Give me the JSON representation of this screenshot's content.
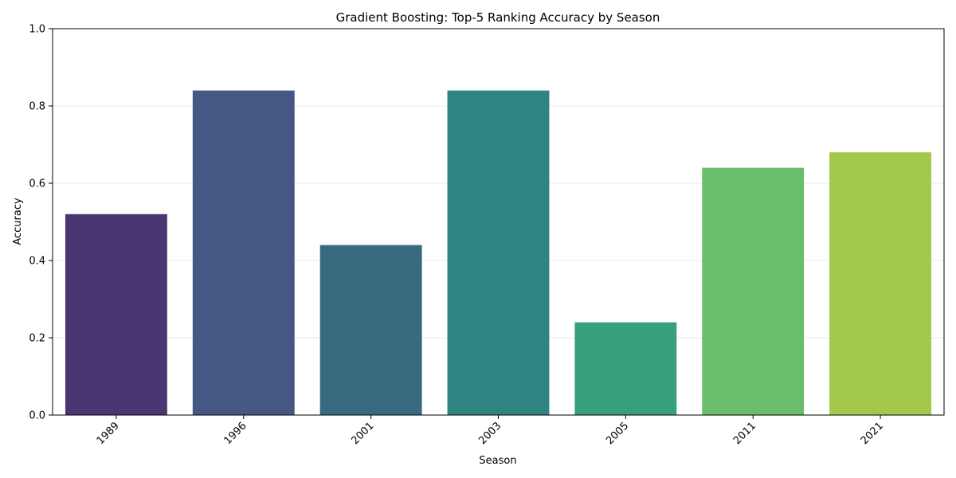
{
  "chart_data": {
    "type": "bar",
    "title": "Gradient Boosting: Top-5 Ranking Accuracy by Season",
    "xlabel": "Season",
    "ylabel": "Accuracy",
    "categories": [
      "1989",
      "1996",
      "2001",
      "2003",
      "2005",
      "2011",
      "2021"
    ],
    "values": [
      0.52,
      0.84,
      0.44,
      0.84,
      0.24,
      0.64,
      0.68
    ],
    "bar_colors": [
      "#4a3771",
      "#455883",
      "#386b80",
      "#2e8480",
      "#36a07c",
      "#6abd6d",
      "#a3c84a"
    ],
    "ylim": [
      0,
      1.0
    ],
    "yticks": [
      0.0,
      0.2,
      0.4,
      0.6,
      0.8,
      1.0
    ],
    "ytick_labels": [
      "0.0",
      "0.2",
      "0.4",
      "0.6",
      "0.8",
      "1.0"
    ],
    "grid": "horizontal",
    "grid_color": "#e8e8e8",
    "xtick_rotation_deg": 45
  }
}
